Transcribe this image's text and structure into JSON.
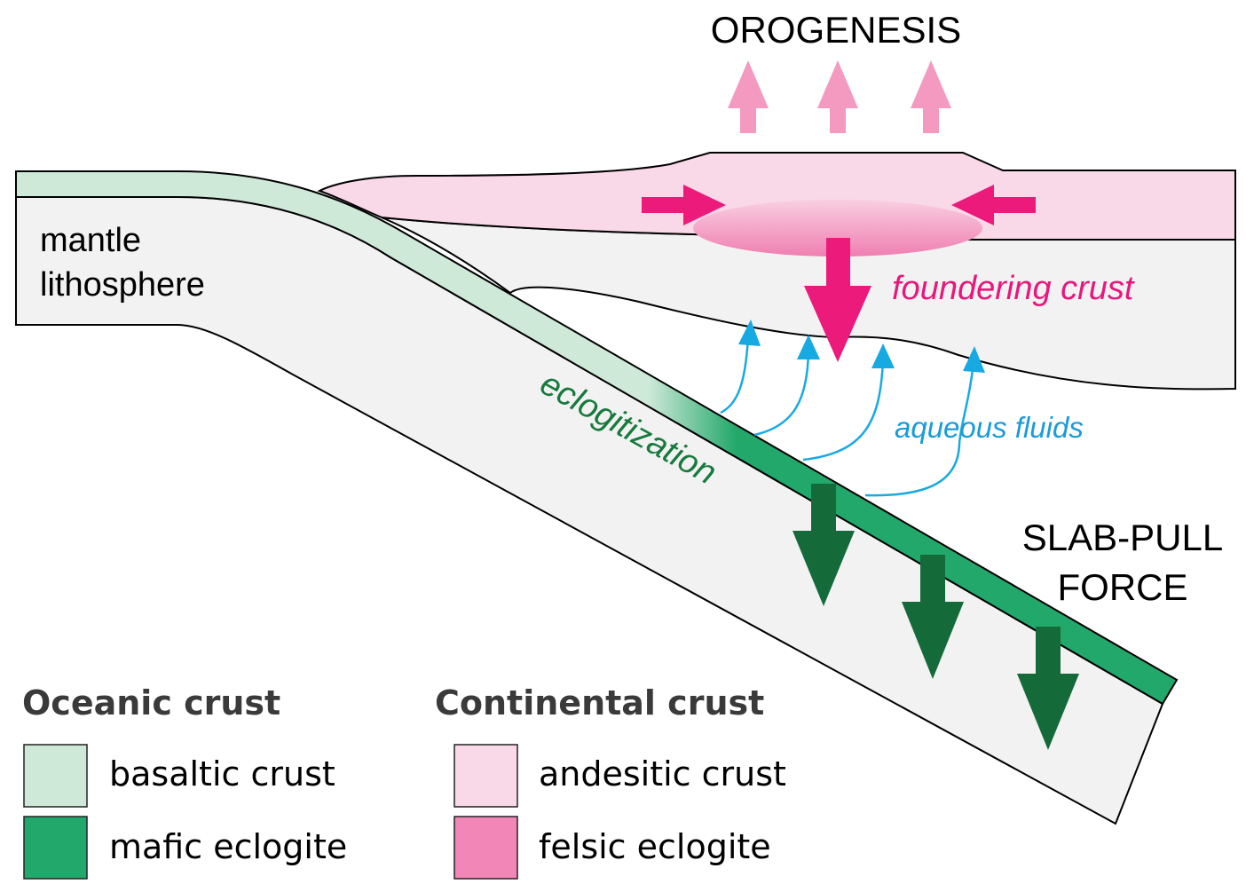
{
  "labels": {
    "orogenesis": "OROGENESIS",
    "mantle_line1": "mantle",
    "mantle_line2": "lithosphere",
    "foundering": "foundering crust",
    "eclogitization": "eclogitization",
    "aqueous": "aqueous fluids",
    "slab_line1": "SLAB-PULL",
    "slab_line2": "FORCE"
  },
  "legend": {
    "oceanic_title": "Oceanic crust",
    "continental_title": "Continental crust",
    "items": [
      {
        "label": "basaltic crust",
        "color": "#cfe9d9"
      },
      {
        "label": "mafic eclogite",
        "color": "#22a86a"
      },
      {
        "label": "andesitic crust",
        "color": "#f9d8e8"
      },
      {
        "label": "felsic eclogite",
        "color": "#f286b6"
      }
    ]
  },
  "colors": {
    "basaltic": "#cfe9d9",
    "mafic": "#22a86a",
    "andesitic": "#f9d8e8",
    "felsic": "#f286b6",
    "mantle": "#f2f2f2",
    "uplift_arrow": "#f49ac1",
    "compression_arrow": "#ec1a7b",
    "slab_arrow": "#146b39",
    "fluid_arrow": "#17a9e1",
    "foundering_text": "#e8177c",
    "eclogitization_text": "#167a3c",
    "aqueous_text": "#1a9bd8"
  },
  "icons": [
    "uplift-arrow",
    "compression-arrow",
    "sinking-arrow",
    "fluid-arrow",
    "slab-pull-arrow"
  ]
}
